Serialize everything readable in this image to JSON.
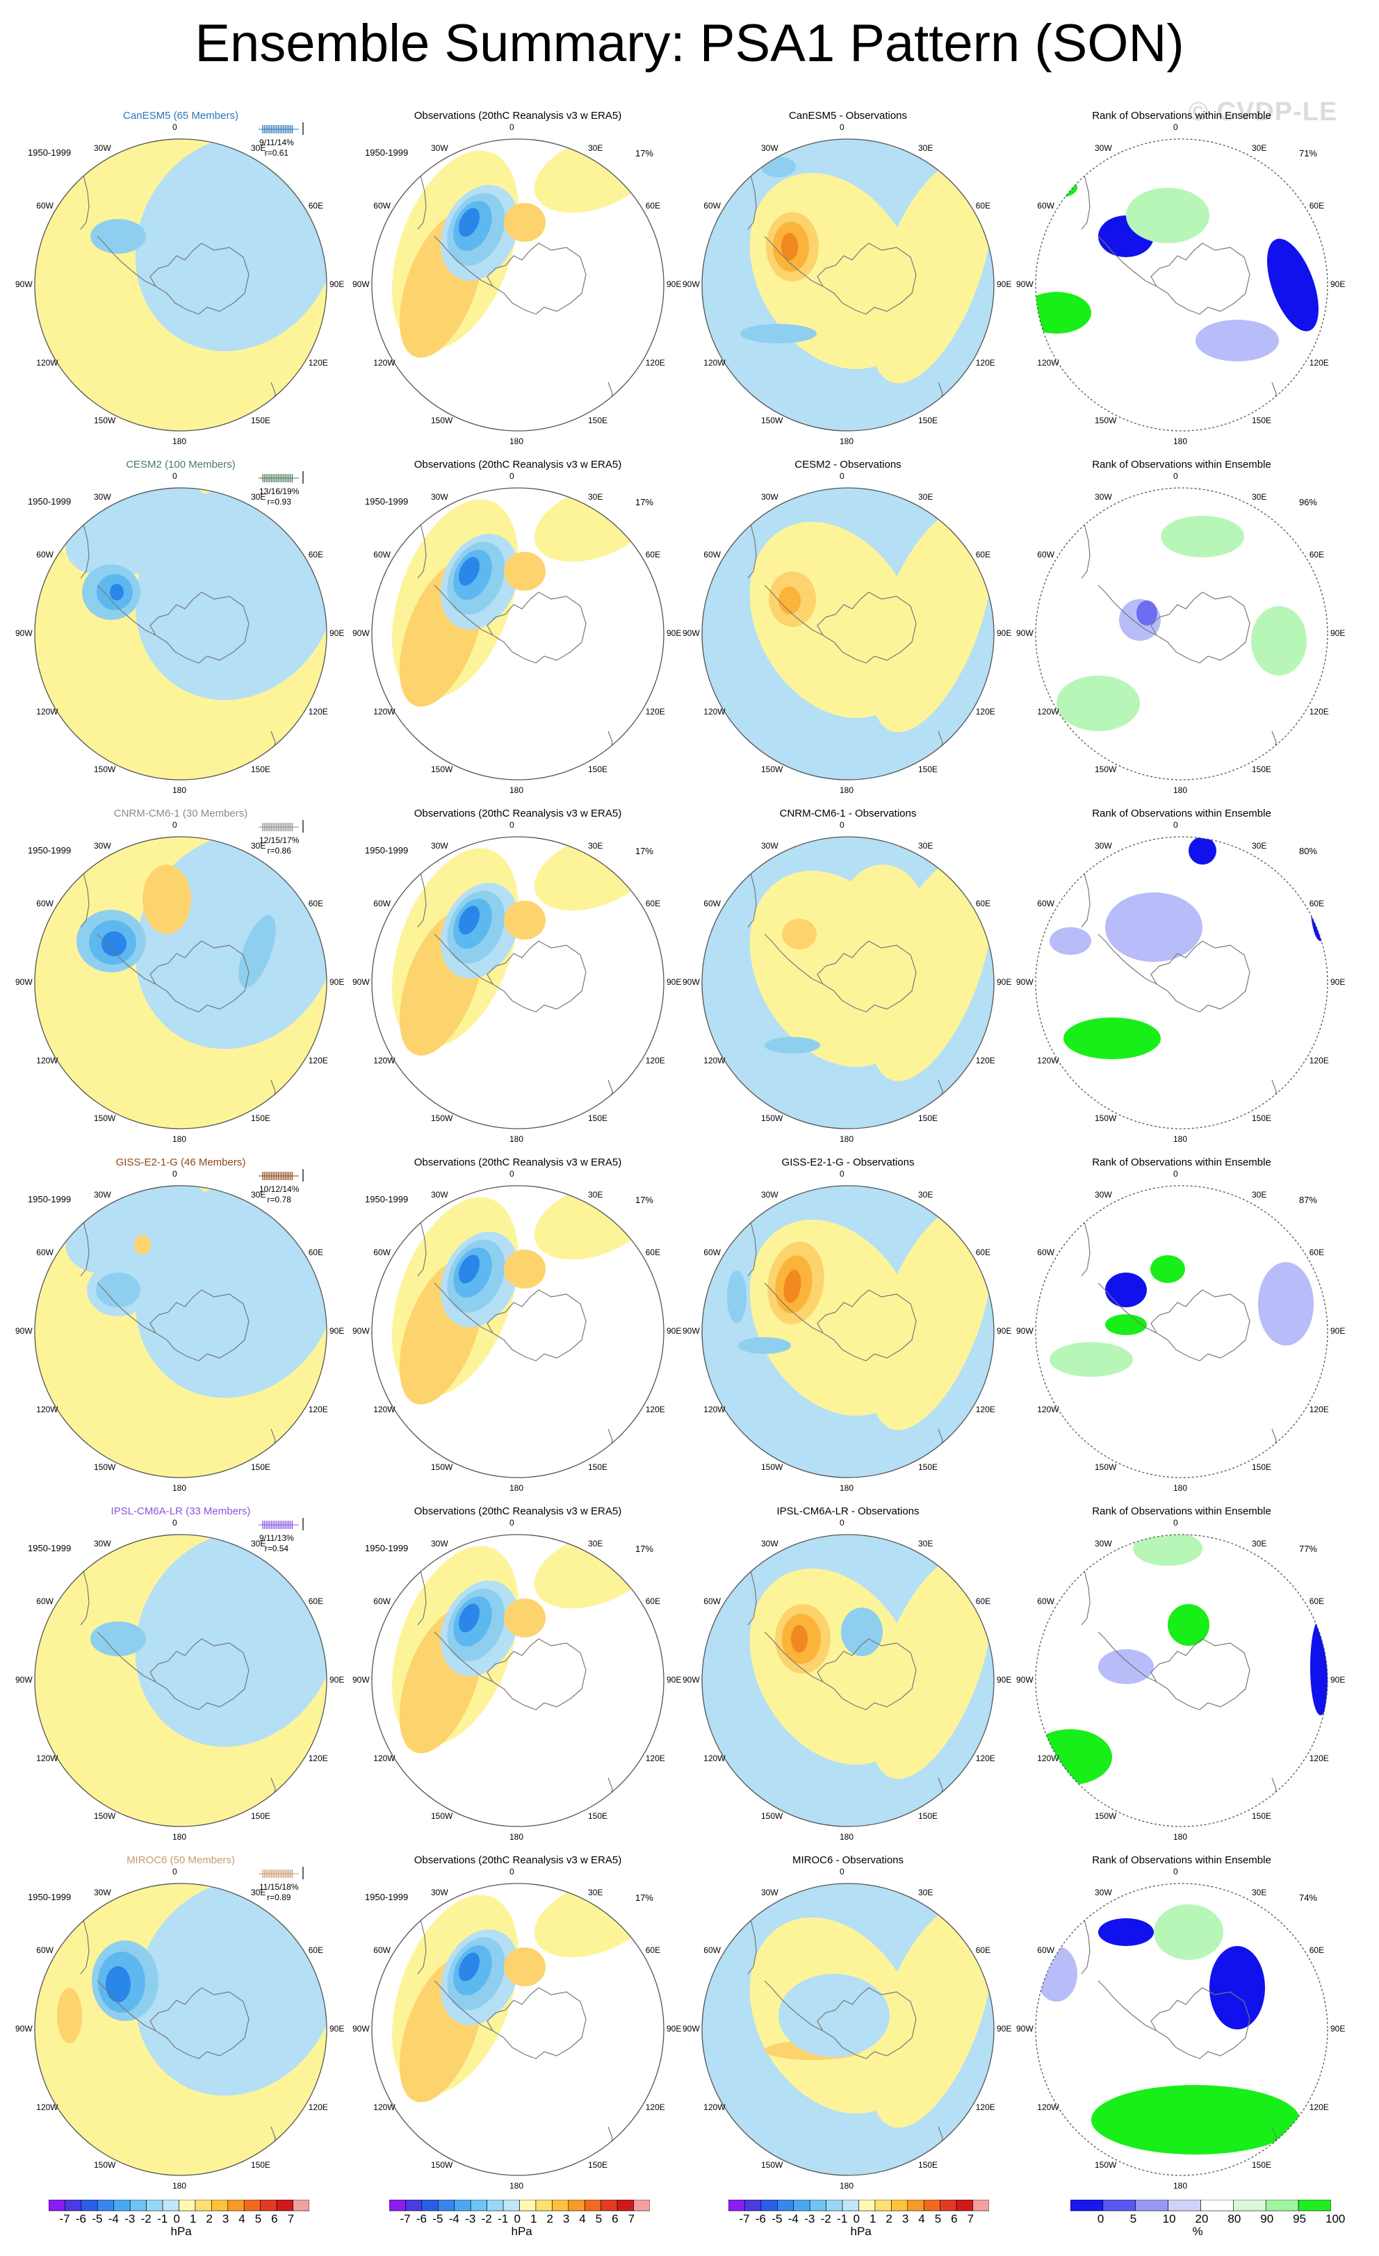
{
  "title": "Ensemble Summary: PSA1 Pattern (SON)",
  "watermark": "© CVDP-LE",
  "period": "1950-1999",
  "obs_title": "Observations (20thC Reanalysis v3 w ERA5)",
  "obs_pct": "17%",
  "rank_title": "Rank of Observations within Ensemble",
  "lon_labels": [
    "0",
    "30E",
    "60E",
    "90E",
    "120E",
    "150E",
    "180",
    "150W",
    "120W",
    "90W",
    "60W",
    "30W"
  ],
  "colors": {
    "yellow": "#fdf49a",
    "lightblue": "#b4dff5",
    "blue1": "#8ecfef",
    "blue2": "#5eb8f0",
    "blue3": "#2a86e9",
    "blue4": "#1c5de8",
    "orange1": "#fdd36e",
    "orange2": "#fbb33a",
    "orange3": "#f08920",
    "green": "#18ee18",
    "lightgreen": "#b8f6b8",
    "rankblue": "#1111ee",
    "ranklight": "#b8bcf8"
  },
  "rows": [
    {
      "model": "CanESM5 (65 Members)",
      "color": "#2876b8",
      "diff": "CanESM5 - Observations",
      "stats": "9/11/14%",
      "r": "r=0.61",
      "rank_pct": "71%"
    },
    {
      "model": "CESM2 (100 Members)",
      "color": "#4e7a58",
      "diff": "CESM2 - Observations",
      "stats": "13/16/19%",
      "r": "r=0.93",
      "rank_pct": "96%"
    },
    {
      "model": "CNRM-CM6-1 (30 Members)",
      "color": "#8c8c8c",
      "diff": "CNRM-CM6-1 - Observations",
      "stats": "12/15/17%",
      "r": "r=0.86",
      "rank_pct": "80%"
    },
    {
      "model": "GISS-E2-1-G (46 Members)",
      "color": "#8c4a1c",
      "diff": "GISS-E2-1-G - Observations",
      "stats": "10/12/14%",
      "r": "r=0.78",
      "rank_pct": "87%"
    },
    {
      "model": "IPSL-CM6A-LR (33 Members)",
      "color": "#8a54e0",
      "diff": "IPSL-CM6A-LR - Observations",
      "stats": "9/11/13%",
      "r": "r=0.54",
      "rank_pct": "77%"
    },
    {
      "model": "MIROC6 (50 Members)",
      "color": "#c99a6a",
      "diff": "MIROC6 - Observations",
      "stats": "11/15/18%",
      "r": "r=0.89",
      "rank_pct": "74%"
    }
  ],
  "colorbar_hpa": {
    "labels": [
      "-7",
      "-6",
      "-5",
      "-4",
      "-3",
      "-2",
      "-1",
      "0",
      "1",
      "2",
      "3",
      "4",
      "5",
      "6",
      "7"
    ],
    "unit": "hPa",
    "colors": [
      "#8c1cf0",
      "#4a3ce0",
      "#2a5ee8",
      "#3a86f0",
      "#4aa8f2",
      "#6ec4f4",
      "#98d8f6",
      "#c0e6f8",
      "#fffab0",
      "#fde070",
      "#fcc23c",
      "#f89a28",
      "#f06a20",
      "#e33a22",
      "#d01a1a",
      "#f4a0a0"
    ]
  },
  "colorbar_rank": {
    "labels": [
      "0",
      "5",
      "10",
      "20",
      "80",
      "90",
      "95",
      "100"
    ],
    "unit": "%",
    "colors": [
      "#1818ee",
      "#5858f0",
      "#9898f4",
      "#d0d2fa",
      "#ffffff",
      "#d8f8d8",
      "#a0f4a0",
      "#20ee20"
    ]
  }
}
